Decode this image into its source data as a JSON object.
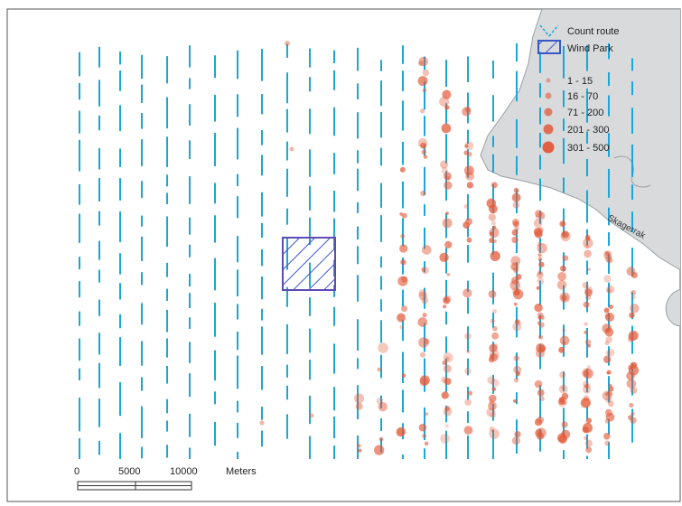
{
  "map": {
    "legend": {
      "items": [
        {
          "label": "Count route",
          "kind": "route",
          "color": "#1aa7d6"
        },
        {
          "label": "Wind Park",
          "kind": "windpark",
          "color": "#3a57c9"
        }
      ],
      "classes": [
        {
          "label": "1 - 15",
          "size": 1
        },
        {
          "label": "16 - 70",
          "size": 2
        },
        {
          "label": "71 - 200",
          "size": 3
        },
        {
          "label": "201 - 300",
          "size": 4
        },
        {
          "label": "301 - 500",
          "size": 5
        }
      ]
    },
    "scale": {
      "ticks": [
        "0",
        "5000",
        "10000"
      ],
      "unit": "Meters"
    },
    "coast_label": "Skagerrak",
    "colors": {
      "route": "#1aa7d6",
      "windpark": "#3a57c9",
      "land": "#d8dadc",
      "land_edge": "#9aa0a6",
      "bird": "#e25a3a",
      "frame": "#555555"
    }
  }
}
